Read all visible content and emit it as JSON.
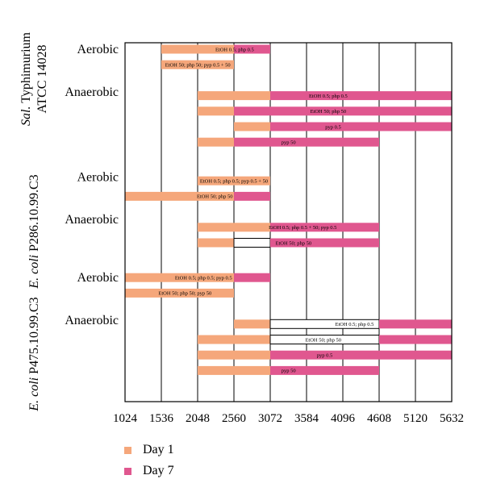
{
  "chart_data": {
    "type": "bar",
    "orientation": "horizontal",
    "x_ticks": [
      1024,
      1536,
      2048,
      2560,
      3072,
      3584,
      4096,
      4608,
      5120,
      5632
    ],
    "xlim": [
      1024,
      5632
    ],
    "grid": "vertical",
    "colors": {
      "day1": "#f5a77b",
      "day7": "#e0578f",
      "outline_fill": "#ffffff"
    },
    "groups": [
      {
        "label_parts": [
          {
            "text": "Sal.",
            "italic": true
          },
          {
            "text": " Typhimurium",
            "italic": false
          }
        ],
        "label_line2": "ATCC 14028"
      },
      {
        "label_parts": [
          {
            "text": "E. coli",
            "italic": true
          },
          {
            "text": " P286.10.99.C3",
            "italic": false
          }
        ],
        "label_line2": ""
      },
      {
        "label_parts": [
          {
            "text": "E. coli",
            "italic": true
          },
          {
            "text": " P475.10.99.C3",
            "italic": false
          }
        ],
        "label_line2": ""
      }
    ],
    "conditions": [
      {
        "label": "Aerobic",
        "group": 0,
        "row": 0.0
      },
      {
        "label": "Anaerobic",
        "group": 0,
        "row": 2.75
      },
      {
        "label": "Aerobic",
        "group": 1,
        "row": 8.25
      },
      {
        "label": "Anaerobic",
        "group": 1,
        "row": 11.0
      },
      {
        "label": "Aerobic",
        "group": 2,
        "row": 14.75
      },
      {
        "label": "Anaerobic",
        "group": 2,
        "row": 17.5
      }
    ],
    "rows": [
      {
        "row": 0.0,
        "label": "EtOH 0.5; php 0.5",
        "label_at": 2570,
        "segments": [
          {
            "from": 1536,
            "to": 2560,
            "day": 1
          },
          {
            "from": 2560,
            "to": 3072,
            "day": 7
          }
        ]
      },
      {
        "row": 1.0,
        "label": "EtOH 50; php 50; pyp 0.5 + 50",
        "label_at": 2050,
        "segments": [
          {
            "from": 1536,
            "to": 2560,
            "day": 1
          }
        ]
      },
      {
        "row": 3.0,
        "label": "EtOH 0.5; php 0.5",
        "label_at": 3890,
        "segments": [
          {
            "from": 2048,
            "to": 3072,
            "day": 1
          },
          {
            "from": 3072,
            "to": 5632,
            "day": 7
          }
        ]
      },
      {
        "row": 4.0,
        "label": "EtOH 50; php 50",
        "label_at": 3890,
        "segments": [
          {
            "from": 2048,
            "to": 2560,
            "day": 1
          },
          {
            "from": 2560,
            "to": 5632,
            "day": 7
          }
        ]
      },
      {
        "row": 5.0,
        "label": "pyp 0.5",
        "label_at": 3960,
        "segments": [
          {
            "from": 2560,
            "to": 3072,
            "day": 1
          },
          {
            "from": 3072,
            "to": 5632,
            "day": 7
          }
        ]
      },
      {
        "row": 6.0,
        "label": "pyp 50",
        "label_at": 3330,
        "segments": [
          {
            "from": 2048,
            "to": 2560,
            "day": 1
          },
          {
            "from": 2560,
            "to": 4608,
            "day": 7
          }
        ]
      },
      {
        "row": 8.5,
        "label": "EtOH 0.5; php 0.5; pyp 0.5 + 50",
        "label_at": 2560,
        "segments": [
          {
            "from": 2048,
            "to": 3072,
            "day": 1
          }
        ]
      },
      {
        "row": 9.5,
        "label": "EtOH 50; php 50",
        "label_at": 2290,
        "segments": [
          {
            "from": 1024,
            "to": 2560,
            "day": 1
          },
          {
            "from": 2560,
            "to": 3072,
            "day": 7
          }
        ]
      },
      {
        "row": 11.5,
        "label": "EtOH 0.5; php 0.5 + 50; pyp 0.5",
        "label_at": 3530,
        "segments": [
          {
            "from": 2048,
            "to": 3072,
            "day": 1
          },
          {
            "from": 3072,
            "to": 4608,
            "day": 7
          }
        ]
      },
      {
        "row": 12.5,
        "label": "EtOH 50; php 50",
        "label_at": 3400,
        "segments": [
          {
            "from": 2048,
            "to": 2560,
            "day": 1
          },
          {
            "from": 2560,
            "to": 3072,
            "day": 0
          },
          {
            "from": 3072,
            "to": 4608,
            "day": 7
          }
        ]
      },
      {
        "row": 14.75,
        "label": "EtOH 0.5; php 0.5; pyp 0.5",
        "label_at": 2130,
        "segments": [
          {
            "from": 1024,
            "to": 2560,
            "day": 1
          },
          {
            "from": 2560,
            "to": 3072,
            "day": 7
          }
        ]
      },
      {
        "row": 15.75,
        "label": "EtOH 50; php 50; pyp 50",
        "label_at": 1870,
        "segments": [
          {
            "from": 1024,
            "to": 2560,
            "day": 1
          }
        ]
      },
      {
        "row": 17.75,
        "label": "EtOH 0.5; php 0.5",
        "label_at": 4260,
        "segments": [
          {
            "from": 2560,
            "to": 3072,
            "day": 1
          },
          {
            "from": 3072,
            "to": 4608,
            "day": 0
          },
          {
            "from": 4608,
            "to": 5632,
            "day": 7
          }
        ]
      },
      {
        "row": 18.75,
        "label": "EtOH 50; php 50",
        "label_at": 3820,
        "segments": [
          {
            "from": 2048,
            "to": 3072,
            "day": 1
          },
          {
            "from": 3072,
            "to": 4608,
            "day": 0
          },
          {
            "from": 4608,
            "to": 5632,
            "day": 7
          }
        ]
      },
      {
        "row": 19.75,
        "label": "pyp 0.5",
        "label_at": 3840,
        "segments": [
          {
            "from": 2048,
            "to": 3072,
            "day": 1
          },
          {
            "from": 3072,
            "to": 5632,
            "day": 7
          }
        ]
      },
      {
        "row": 20.75,
        "label": "pyp 50",
        "label_at": 3330,
        "segments": [
          {
            "from": 2048,
            "to": 3072,
            "day": 1
          },
          {
            "from": 3072,
            "to": 4608,
            "day": 7
          }
        ]
      }
    ],
    "legend": [
      {
        "label": "Day 1",
        "color": "#f5a77b"
      },
      {
        "label": "Day 7",
        "color": "#e0578f"
      }
    ],
    "legend_position": "bottom-left"
  }
}
